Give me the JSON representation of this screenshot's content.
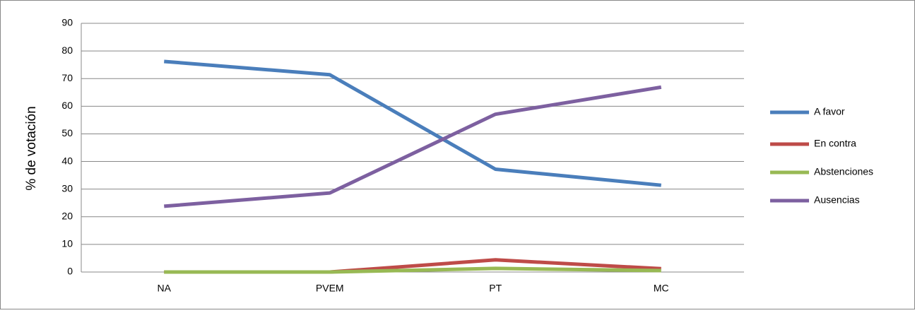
{
  "chart_data": {
    "type": "line",
    "y_label": "% de votación",
    "categories": [
      "NA",
      "PVEM",
      "PT",
      "MC"
    ],
    "series": [
      {
        "name": "A favor",
        "color": "#4a7ebb",
        "values": [
          76.2,
          71.4,
          37.2,
          31.4
        ]
      },
      {
        "name": "En contra",
        "color": "#be4b48",
        "values": [
          0,
          0,
          4.4,
          1.2
        ]
      },
      {
        "name": "Abstenciones",
        "color": "#98b954",
        "values": [
          0,
          0,
          1.3,
          0.5
        ]
      },
      {
        "name": "Ausencias",
        "color": "#7d60a0",
        "values": [
          23.8,
          28.6,
          57.1,
          66.9
        ]
      }
    ],
    "ylim": [
      0,
      90
    ],
    "yticks": [
      0,
      10,
      20,
      30,
      40,
      50,
      60,
      70,
      80,
      90
    ],
    "grid": true,
    "legend": "right"
  }
}
